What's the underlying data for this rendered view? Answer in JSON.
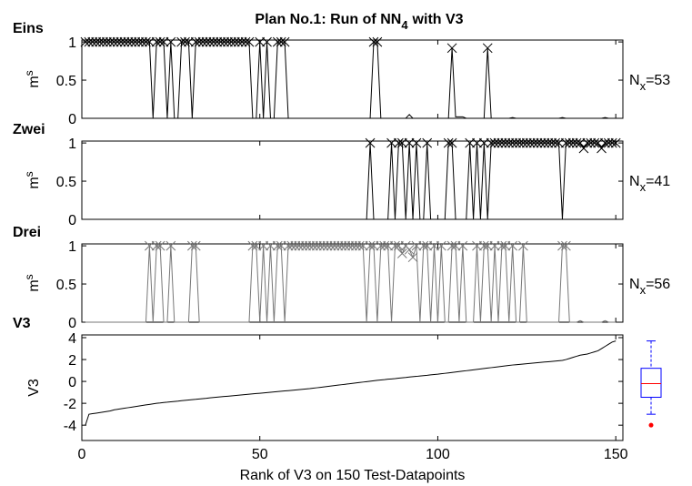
{
  "chart_data": [
    {
      "type": "line",
      "title": "Plan No.1: Run of NN",
      "title_sub": "4",
      "title_end": "with V3",
      "panel_label": "Eins",
      "ylabel": "m",
      "ylabel_sup": "s",
      "annotation": "N",
      "annotation_sub": "x",
      "annotation_end": "=53",
      "color": "#000000",
      "marker": "x",
      "xlim": [
        0,
        152
      ],
      "xticks": [
        0,
        50,
        100,
        150
      ],
      "show_xtick_labels": false,
      "ylim": [
        0,
        1.025
      ],
      "yticks": [
        0,
        0.5,
        1
      ],
      "x": [
        1,
        2,
        3,
        4,
        5,
        6,
        7,
        8,
        9,
        10,
        11,
        12,
        13,
        14,
        15,
        16,
        17,
        18,
        19,
        20,
        21,
        22,
        23,
        24,
        25,
        26,
        27,
        28,
        29,
        30,
        31,
        32,
        33,
        34,
        35,
        36,
        37,
        38,
        39,
        40,
        41,
        42,
        43,
        44,
        45,
        46,
        47,
        48,
        49,
        50,
        51,
        52,
        53,
        54,
        55,
        56,
        57,
        58,
        59,
        60,
        61,
        62,
        63,
        64,
        65,
        66,
        67,
        68,
        69,
        70,
        71,
        72,
        73,
        74,
        75,
        76,
        77,
        78,
        79,
        80,
        81,
        82,
        83,
        84,
        85,
        86,
        87,
        88,
        89,
        90,
        91,
        92,
        93,
        94,
        95,
        96,
        97,
        98,
        99,
        100,
        101,
        102,
        103,
        104,
        105,
        106,
        107,
        108,
        109,
        110,
        111,
        112,
        113,
        114,
        115,
        116,
        117,
        118,
        119,
        120,
        121,
        122,
        123,
        124,
        125,
        126,
        127,
        128,
        129,
        130,
        131,
        132,
        133,
        134,
        135,
        136,
        137,
        138,
        139,
        140,
        141,
        142,
        143,
        144,
        145,
        146,
        147,
        148,
        149,
        150
      ],
      "values": [
        1,
        1,
        1,
        1,
        1,
        1,
        1,
        1,
        1,
        1,
        1,
        1,
        1,
        1,
        1,
        1,
        1,
        1,
        1,
        0,
        1,
        1,
        1,
        0,
        1,
        0,
        0,
        1,
        1,
        1,
        0,
        1,
        1,
        1,
        1,
        1,
        1,
        1,
        1,
        1,
        1,
        1,
        1,
        1,
        1,
        1,
        1,
        0,
        0,
        1,
        0,
        1,
        0,
        0,
        1,
        1,
        1,
        0,
        0,
        0,
        0,
        0,
        0,
        0,
        0,
        0,
        0,
        0,
        0,
        0,
        0,
        0,
        0,
        0,
        0,
        0,
        0,
        0,
        0,
        0,
        0,
        1,
        1,
        0,
        0,
        0,
        0,
        0,
        0,
        0,
        0,
        0.05,
        0,
        0,
        0,
        0,
        0,
        0,
        0,
        0,
        0,
        0,
        0,
        0.92,
        0.02,
        0.02,
        0.02,
        0,
        0,
        0,
        0,
        0,
        0,
        0.92,
        0,
        0,
        0,
        0,
        0,
        0,
        0.01,
        0,
        0,
        0,
        0,
        0,
        0,
        0,
        0,
        0,
        0,
        0,
        0,
        0,
        0.01,
        0,
        0,
        0,
        0,
        0,
        0,
        0,
        0,
        0,
        0,
        0,
        0.01,
        0,
        0,
        0
      ]
    },
    {
      "type": "line",
      "panel_label": "Zwei",
      "ylabel": "m",
      "ylabel_sup": "s",
      "annotation": "N",
      "annotation_sub": "x",
      "annotation_end": "=41",
      "color": "#000000",
      "marker": "x",
      "xlim": [
        0,
        152
      ],
      "xticks": [
        0,
        50,
        100,
        150
      ],
      "show_xtick_labels": false,
      "ylim": [
        0,
        1.025
      ],
      "yticks": [
        0,
        0.5,
        1
      ],
      "x": [
        1,
        2,
        3,
        4,
        5,
        6,
        7,
        8,
        9,
        10,
        11,
        12,
        13,
        14,
        15,
        16,
        17,
        18,
        19,
        20,
        21,
        22,
        23,
        24,
        25,
        26,
        27,
        28,
        29,
        30,
        31,
        32,
        33,
        34,
        35,
        36,
        37,
        38,
        39,
        40,
        41,
        42,
        43,
        44,
        45,
        46,
        47,
        48,
        49,
        50,
        51,
        52,
        53,
        54,
        55,
        56,
        57,
        58,
        59,
        60,
        61,
        62,
        63,
        64,
        65,
        66,
        67,
        68,
        69,
        70,
        71,
        72,
        73,
        74,
        75,
        76,
        77,
        78,
        79,
        80,
        81,
        82,
        83,
        84,
        85,
        86,
        87,
        88,
        89,
        90,
        91,
        92,
        93,
        94,
        95,
        96,
        97,
        98,
        99,
        100,
        101,
        102,
        103,
        104,
        105,
        106,
        107,
        108,
        109,
        110,
        111,
        112,
        113,
        114,
        115,
        116,
        117,
        118,
        119,
        120,
        121,
        122,
        123,
        124,
        125,
        126,
        127,
        128,
        129,
        130,
        131,
        132,
        133,
        134,
        135,
        136,
        137,
        138,
        139,
        140,
        141,
        142,
        143,
        144,
        145,
        146,
        147,
        148,
        149,
        150
      ],
      "values": [
        0,
        0,
        0,
        0,
        0,
        0,
        0,
        0,
        0,
        0,
        0,
        0,
        0,
        0,
        0,
        0,
        0,
        0,
        0,
        0,
        0,
        0,
        0,
        0,
        0,
        0,
        0,
        0,
        0,
        0,
        0,
        0,
        0,
        0,
        0,
        0,
        0,
        0,
        0,
        0,
        0,
        0,
        0,
        0,
        0,
        0,
        0,
        0,
        0,
        0,
        0,
        0,
        0,
        0,
        0,
        0,
        0,
        0,
        0,
        0,
        0,
        0,
        0,
        0,
        0,
        0,
        0,
        0,
        0,
        0,
        0,
        0,
        0,
        0,
        0,
        0,
        0,
        0,
        0,
        0,
        1,
        0,
        0,
        0,
        0,
        0,
        1,
        0,
        1,
        1,
        0,
        1,
        0,
        1,
        0,
        0,
        1,
        0,
        0,
        0,
        0,
        0,
        1,
        1,
        0,
        0,
        0,
        0,
        1,
        0,
        1,
        0,
        1,
        0,
        1,
        1,
        1,
        1,
        1,
        1,
        1,
        1,
        1,
        1,
        1,
        1,
        1,
        1,
        1,
        1,
        1,
        1,
        1,
        1,
        0,
        1,
        1,
        1,
        1,
        1,
        0.93,
        1,
        1,
        1,
        1,
        0.93,
        1,
        1,
        1,
        1
      ]
    },
    {
      "type": "line",
      "panel_label": "Drei",
      "ylabel": "m",
      "ylabel_sup": "s",
      "annotation": "N",
      "annotation_sub": "x",
      "annotation_end": "=56",
      "color": "#777777",
      "marker": "x",
      "xlim": [
        0,
        152
      ],
      "xticks": [
        0,
        50,
        100,
        150
      ],
      "show_xtick_labels": false,
      "ylim": [
        0,
        1.025
      ],
      "yticks": [
        0,
        0.5,
        1
      ],
      "x": [
        1,
        2,
        3,
        4,
        5,
        6,
        7,
        8,
        9,
        10,
        11,
        12,
        13,
        14,
        15,
        16,
        17,
        18,
        19,
        20,
        21,
        22,
        23,
        24,
        25,
        26,
        27,
        28,
        29,
        30,
        31,
        32,
        33,
        34,
        35,
        36,
        37,
        38,
        39,
        40,
        41,
        42,
        43,
        44,
        45,
        46,
        47,
        48,
        49,
        50,
        51,
        52,
        53,
        54,
        55,
        56,
        57,
        58,
        59,
        60,
        61,
        62,
        63,
        64,
        65,
        66,
        67,
        68,
        69,
        70,
        71,
        72,
        73,
        74,
        75,
        76,
        77,
        78,
        79,
        80,
        81,
        82,
        83,
        84,
        85,
        86,
        87,
        88,
        89,
        90,
        91,
        92,
        93,
        94,
        95,
        96,
        97,
        98,
        99,
        100,
        101,
        102,
        103,
        104,
        105,
        106,
        107,
        108,
        109,
        110,
        111,
        112,
        113,
        114,
        115,
        116,
        117,
        118,
        119,
        120,
        121,
        122,
        123,
        124,
        125,
        126,
        127,
        128,
        129,
        130,
        131,
        132,
        133,
        134,
        135,
        136,
        137,
        138,
        139,
        140,
        141,
        142,
        143,
        144,
        145,
        146,
        147,
        148,
        149,
        150
      ],
      "values": [
        0,
        0,
        0,
        0,
        0,
        0,
        0,
        0,
        0,
        0,
        0,
        0,
        0,
        0,
        0,
        0,
        0,
        0,
        1,
        0,
        1,
        1,
        0,
        0,
        1,
        0,
        0,
        0,
        0,
        0,
        1,
        1,
        0,
        0,
        0,
        0,
        0,
        0,
        0,
        0,
        0,
        0,
        0,
        0,
        0,
        0,
        0,
        1,
        1,
        0,
        1,
        0,
        1,
        0,
        1,
        1,
        0,
        1,
        1,
        1,
        1,
        1,
        1,
        1,
        1,
        1,
        1,
        1,
        1,
        1,
        1,
        1,
        1,
        1,
        1,
        1,
        1,
        1,
        1,
        0,
        1,
        1,
        0,
        1,
        1,
        1,
        0,
        1,
        1,
        0.9,
        1,
        0.95,
        0.85,
        1,
        0,
        1,
        1,
        0,
        1,
        0,
        1,
        0,
        0,
        1,
        1,
        0,
        1,
        0,
        0,
        0,
        1,
        0,
        1,
        1,
        0,
        1,
        0,
        1,
        1,
        0,
        1,
        0,
        0,
        1,
        0,
        0,
        0,
        0,
        0,
        0,
        0,
        0,
        0,
        0,
        1,
        1,
        0,
        0,
        0,
        0.02,
        0,
        0,
        0,
        0,
        0,
        0,
        0.02,
        0,
        0,
        0
      ]
    },
    {
      "type": "line",
      "panel_label": "V3",
      "ylabel": "V3",
      "xlabel": "Rank of V3 on 150 Test-Datapoints",
      "color": "#000000",
      "xlim": [
        0,
        152
      ],
      "xticks": [
        0,
        50,
        100,
        150
      ],
      "show_xtick_labels": true,
      "ylim": [
        -5.4,
        4.25
      ],
      "yticks": [
        -4,
        -2,
        0,
        2,
        4
      ],
      "x": [
        1,
        2,
        3,
        4,
        5,
        6,
        7,
        8,
        9,
        10,
        11,
        12,
        13,
        14,
        15,
        16,
        17,
        18,
        19,
        20,
        21,
        22,
        23,
        24,
        25,
        26,
        27,
        28,
        29,
        30,
        31,
        32,
        33,
        34,
        35,
        36,
        37,
        38,
        39,
        40,
        41,
        42,
        43,
        44,
        45,
        46,
        47,
        48,
        49,
        50,
        51,
        52,
        53,
        54,
        55,
        56,
        57,
        58,
        59,
        60,
        61,
        62,
        63,
        64,
        65,
        66,
        67,
        68,
        69,
        70,
        71,
        72,
        73,
        74,
        75,
        76,
        77,
        78,
        79,
        80,
        81,
        82,
        83,
        84,
        85,
        86,
        87,
        88,
        89,
        90,
        91,
        92,
        93,
        94,
        95,
        96,
        97,
        98,
        99,
        100,
        101,
        102,
        103,
        104,
        105,
        106,
        107,
        108,
        109,
        110,
        111,
        112,
        113,
        114,
        115,
        116,
        117,
        118,
        119,
        120,
        121,
        122,
        123,
        124,
        125,
        126,
        127,
        128,
        129,
        130,
        131,
        132,
        133,
        134,
        135,
        136,
        137,
        138,
        139,
        140,
        141,
        142,
        143,
        144,
        145,
        146,
        147,
        148,
        149,
        150
      ],
      "values": [
        -4.0,
        -3.0,
        -2.95,
        -2.9,
        -2.85,
        -2.8,
        -2.75,
        -2.7,
        -2.6,
        -2.55,
        -2.5,
        -2.45,
        -2.4,
        -2.35,
        -2.3,
        -2.25,
        -2.2,
        -2.15,
        -2.1,
        -2.05,
        -2.0,
        -1.97,
        -1.93,
        -1.9,
        -1.86,
        -1.83,
        -1.8,
        -1.76,
        -1.73,
        -1.7,
        -1.67,
        -1.64,
        -1.6,
        -1.57,
        -1.54,
        -1.5,
        -1.47,
        -1.44,
        -1.41,
        -1.38,
        -1.35,
        -1.32,
        -1.29,
        -1.26,
        -1.23,
        -1.2,
        -1.17,
        -1.14,
        -1.11,
        -1.08,
        -1.05,
        -1.02,
        -0.99,
        -0.96,
        -0.93,
        -0.9,
        -0.87,
        -0.84,
        -0.81,
        -0.78,
        -0.75,
        -0.72,
        -0.69,
        -0.66,
        -0.62,
        -0.58,
        -0.54,
        -0.5,
        -0.46,
        -0.42,
        -0.38,
        -0.34,
        -0.3,
        -0.26,
        -0.22,
        -0.18,
        -0.14,
        -0.1,
        -0.06,
        -0.02,
        0.02,
        0.06,
        0.1,
        0.13,
        0.16,
        0.2,
        0.23,
        0.26,
        0.3,
        0.33,
        0.36,
        0.4,
        0.43,
        0.46,
        0.5,
        0.53,
        0.56,
        0.6,
        0.63,
        0.66,
        0.7,
        0.74,
        0.78,
        0.82,
        0.86,
        0.9,
        0.94,
        0.98,
        1.02,
        1.06,
        1.1,
        1.14,
        1.18,
        1.22,
        1.26,
        1.3,
        1.34,
        1.38,
        1.42,
        1.46,
        1.5,
        1.53,
        1.56,
        1.59,
        1.62,
        1.65,
        1.68,
        1.71,
        1.74,
        1.77,
        1.8,
        1.83,
        1.86,
        1.89,
        1.92,
        2.0,
        2.1,
        2.2,
        2.3,
        2.4,
        2.45,
        2.5,
        2.6,
        2.7,
        2.8,
        3.0,
        3.2,
        3.4,
        3.6,
        3.7
      ]
    },
    {
      "type": "box",
      "ylim": [
        -5.4,
        4.25
      ],
      "color": "#0000ff",
      "median_color": "#ff0000",
      "whisker_low": -3.0,
      "q1": -1.45,
      "median": -0.2,
      "q3": 1.2,
      "whisker_high": 3.7,
      "outliers": [
        -4.0
      ]
    }
  ]
}
